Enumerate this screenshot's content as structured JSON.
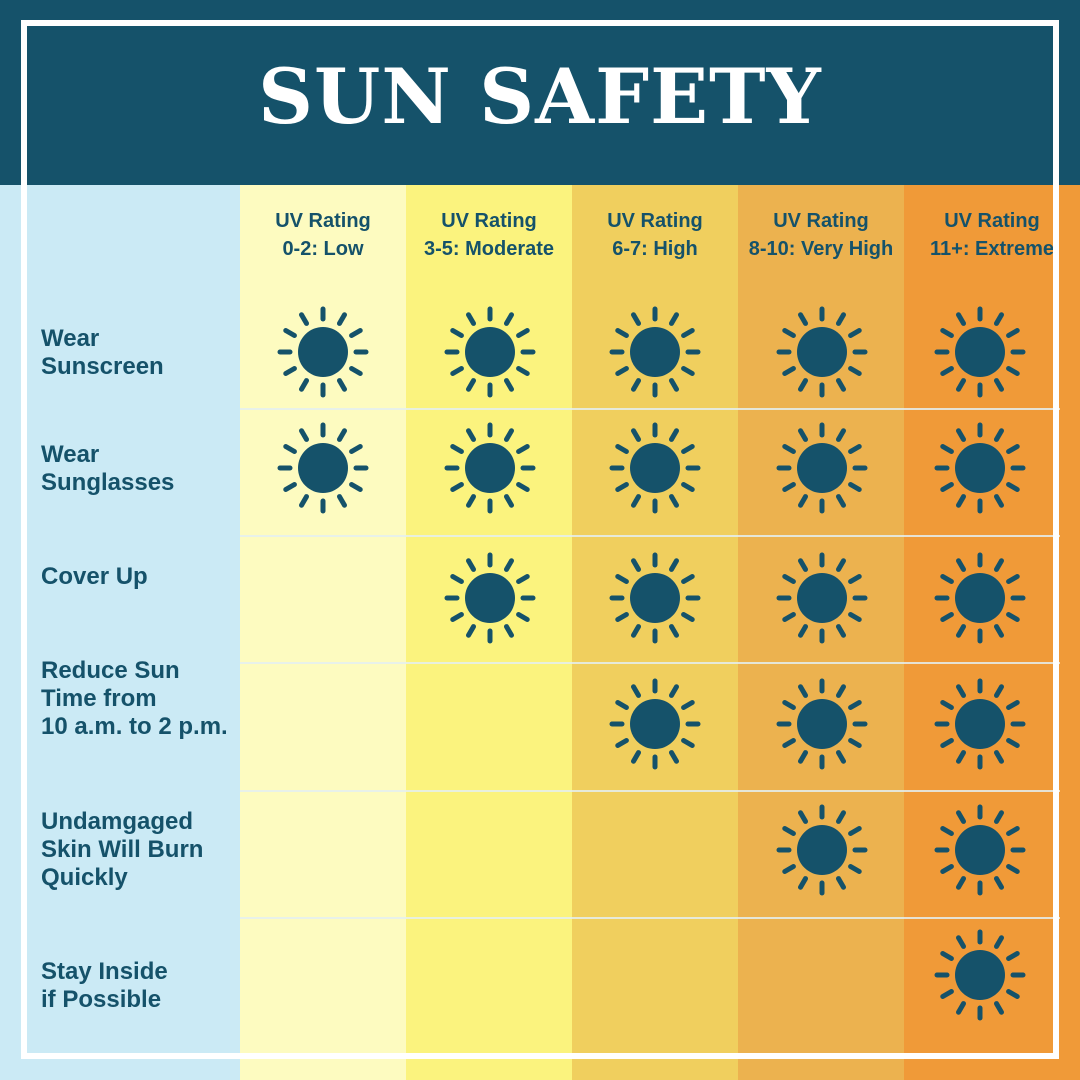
{
  "title": "SUN SAFETY",
  "colors": {
    "navy": "#15526a",
    "label_column": "#cbeaf5",
    "columns": [
      "#fdfbc0",
      "#fbf37e",
      "#f0cf5e",
      "#ecb24f",
      "#f09a38"
    ]
  },
  "columns": [
    {
      "line1": "UV Rating",
      "line2": "0-2: Low"
    },
    {
      "line1": "UV Rating",
      "line2": "3-5: Moderate"
    },
    {
      "line1": "UV Rating",
      "line2": "6-7: High"
    },
    {
      "line1": "UV Rating",
      "line2": "8-10: Very High"
    },
    {
      "line1": "UV Rating",
      "line2": "11+: Extreme"
    }
  ],
  "rows": [
    {
      "label": [
        "Wear",
        "Sunscreen"
      ],
      "suns": [
        true,
        true,
        true,
        true,
        true
      ]
    },
    {
      "label": [
        "Wear",
        "Sunglasses"
      ],
      "suns": [
        true,
        true,
        true,
        true,
        true
      ]
    },
    {
      "label": [
        "Cover Up"
      ],
      "suns": [
        false,
        true,
        true,
        true,
        true
      ]
    },
    {
      "label": [
        "Reduce Sun",
        "Time from",
        "10 a.m. to 2 p.m."
      ],
      "suns": [
        false,
        false,
        true,
        true,
        true
      ]
    },
    {
      "label": [
        "Undamgaged",
        "Skin Will Burn",
        "Quickly"
      ],
      "suns": [
        false,
        false,
        false,
        true,
        true
      ]
    },
    {
      "label": [
        "Stay Inside",
        "if Possible"
      ],
      "suns": [
        false,
        false,
        false,
        false,
        true
      ]
    }
  ],
  "icon": "sun-icon"
}
